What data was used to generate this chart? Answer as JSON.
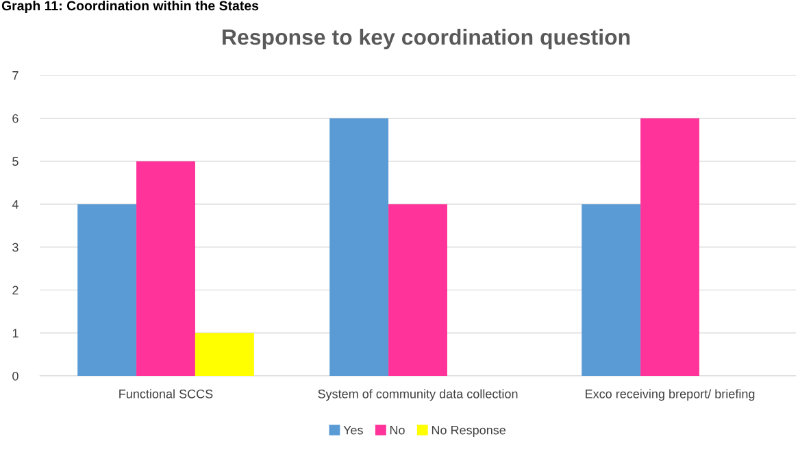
{
  "chart_data": {
    "type": "bar",
    "title": "Response to key coordination question",
    "annotations": [
      "Graph 11: Coordination within the States"
    ],
    "categories": [
      "Functional SCCS",
      "System of community data collection",
      "Exco receiving breport/ briefing"
    ],
    "series": [
      {
        "name": "Yes",
        "color": "#5b9bd5",
        "values": [
          4,
          6,
          4
        ]
      },
      {
        "name": "No",
        "color": "#ff3399",
        "values": [
          5,
          4,
          6
        ]
      },
      {
        "name": "No Response",
        "color": "#ffff00",
        "values": [
          1,
          0,
          0
        ]
      }
    ],
    "ylim": [
      0,
      7
    ],
    "yticks": [
      0,
      1,
      2,
      3,
      4,
      5,
      6,
      7
    ],
    "grid": "y",
    "legend": "bottom"
  }
}
